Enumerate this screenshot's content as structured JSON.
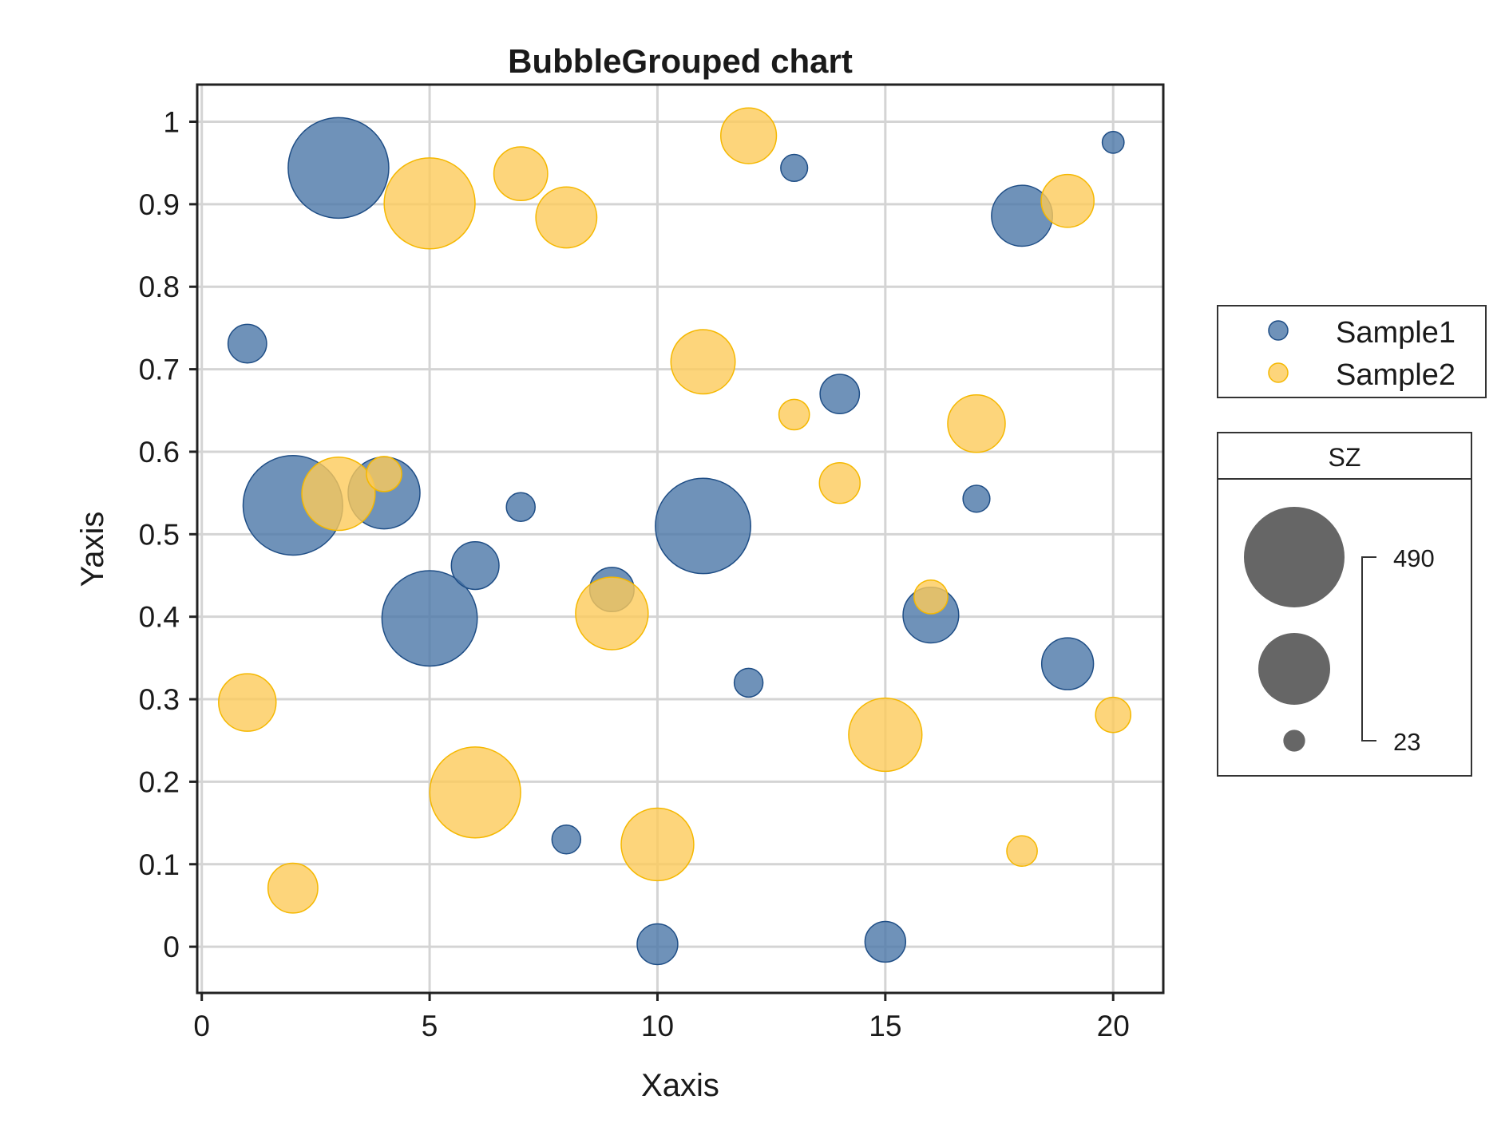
{
  "chart_data": {
    "type": "scatter",
    "title": "BubbleGrouped chart",
    "xlabel": "Xaxis",
    "ylabel": "Yaxis",
    "xlim": [
      -0.1,
      21.1
    ],
    "ylim": [
      -0.056,
      1.045
    ],
    "xticks": [
      0,
      5,
      10,
      15,
      20
    ],
    "xtick_labels": [
      "0",
      "5",
      "10",
      "15",
      "20"
    ],
    "yticks": [
      0,
      0.1,
      0.2,
      0.3,
      0.4,
      0.5,
      0.6,
      0.7,
      0.8,
      0.9,
      1
    ],
    "ytick_labels": [
      "0",
      "0.1",
      "0.2",
      "0.3",
      "0.4",
      "0.5",
      "0.6",
      "0.7",
      "0.8",
      "0.9",
      "1"
    ],
    "grid": true,
    "legend_position": "right",
    "series": [
      {
        "name": "Sample1",
        "color": "#4B77A8",
        "edge": "#1F4E86",
        "points": [
          {
            "x": 1,
            "y": 0.731,
            "size": 72
          },
          {
            "x": 2,
            "y": 0.535,
            "size": 480
          },
          {
            "x": 3,
            "y": 0.944,
            "size": 490
          },
          {
            "x": 4,
            "y": 0.55,
            "size": 250
          },
          {
            "x": 5,
            "y": 0.398,
            "size": 440
          },
          {
            "x": 6,
            "y": 0.462,
            "size": 110
          },
          {
            "x": 7,
            "y": 0.533,
            "size": 40
          },
          {
            "x": 8,
            "y": 0.13,
            "size": 40
          },
          {
            "x": 9,
            "y": 0.433,
            "size": 95
          },
          {
            "x": 10,
            "y": 0.003,
            "size": 80
          },
          {
            "x": 11,
            "y": 0.51,
            "size": 440
          },
          {
            "x": 12,
            "y": 0.32,
            "size": 40
          },
          {
            "x": 13,
            "y": 0.944,
            "size": 35
          },
          {
            "x": 14,
            "y": 0.67,
            "size": 75
          },
          {
            "x": 15,
            "y": 0.006,
            "size": 80
          },
          {
            "x": 16,
            "y": 0.402,
            "size": 150
          },
          {
            "x": 17,
            "y": 0.543,
            "size": 35
          },
          {
            "x": 18,
            "y": 0.886,
            "size": 180
          },
          {
            "x": 19,
            "y": 0.343,
            "size": 130
          },
          {
            "x": 20,
            "y": 0.975,
            "size": 23
          }
        ]
      },
      {
        "name": "Sample2",
        "color": "#FDCB5A",
        "edge": "#F5B800",
        "points": [
          {
            "x": 1,
            "y": 0.296,
            "size": 160
          },
          {
            "x": 2,
            "y": 0.071,
            "size": 120
          },
          {
            "x": 3,
            "y": 0.549,
            "size": 260
          },
          {
            "x": 4,
            "y": 0.573,
            "size": 60
          },
          {
            "x": 5,
            "y": 0.901,
            "size": 400
          },
          {
            "x": 6,
            "y": 0.187,
            "size": 400
          },
          {
            "x": 7,
            "y": 0.937,
            "size": 140
          },
          {
            "x": 8,
            "y": 0.884,
            "size": 180
          },
          {
            "x": 9,
            "y": 0.404,
            "size": 255
          },
          {
            "x": 10,
            "y": 0.124,
            "size": 255
          },
          {
            "x": 11,
            "y": 0.709,
            "size": 200
          },
          {
            "x": 12,
            "y": 0.983,
            "size": 150
          },
          {
            "x": 13,
            "y": 0.645,
            "size": 45
          },
          {
            "x": 14,
            "y": 0.562,
            "size": 80
          },
          {
            "x": 15,
            "y": 0.257,
            "size": 260
          },
          {
            "x": 16,
            "y": 0.424,
            "size": 55
          },
          {
            "x": 17,
            "y": 0.634,
            "size": 160
          },
          {
            "x": 18,
            "y": 0.116,
            "size": 45
          },
          {
            "x": 19,
            "y": 0.904,
            "size": 135
          },
          {
            "x": 20,
            "y": 0.281,
            "size": 60
          }
        ]
      }
    ],
    "size_legend": {
      "title": "SZ",
      "max_label": "490",
      "min_label": "23",
      "sizes": [
        490,
        250,
        23
      ],
      "color": "#555555"
    }
  }
}
